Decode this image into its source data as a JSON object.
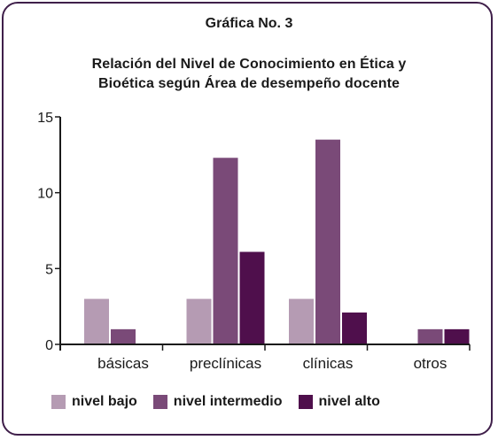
{
  "header": {
    "label": "Gráfica No. 3",
    "title_line_1": "Relación del Nivel de Conocimiento en Ética y",
    "title_line_2": "Bioética según Área de desempeño docente"
  },
  "chart_data": {
    "type": "bar",
    "title": "Relación del Nivel de Conocimiento en Ética y Bioética según Área de desempeño docente",
    "categories": [
      "básicas",
      "preclínicas",
      "clínicas",
      "otros"
    ],
    "series": [
      {
        "name": "nivel bajo",
        "values": [
          3,
          3,
          3,
          0
        ],
        "color": "#b59bb3"
      },
      {
        "name": "nivel intermedio",
        "values": [
          1,
          12.3,
          13.5,
          1
        ],
        "color": "#7a4a78"
      },
      {
        "name": "nivel alto",
        "values": [
          0,
          6.1,
          2.1,
          1
        ],
        "color": "#4f0f4c"
      }
    ],
    "ylim": [
      0,
      15
    ],
    "yticks": [
      0,
      5,
      10,
      15
    ],
    "xlabel": "",
    "ylabel": "",
    "legend_position": "bottom",
    "grid": false
  },
  "colors": {
    "frame": "#3f1f4a",
    "text": "#1a1a1a"
  }
}
